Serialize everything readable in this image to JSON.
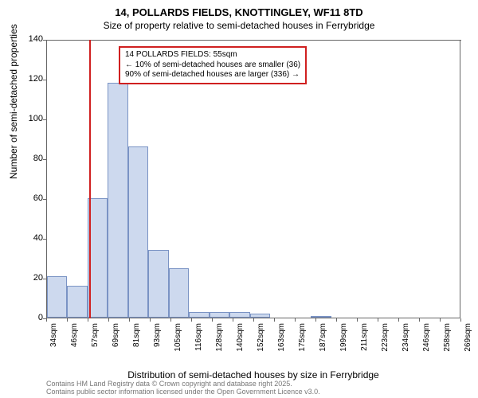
{
  "title": "14, POLLARDS FIELDS, KNOTTINGLEY, WF11 8TD",
  "subtitle": "Size of property relative to semi-detached houses in Ferrybridge",
  "ylabel": "Number of semi-detached properties",
  "xlabel": "Distribution of semi-detached houses by size in Ferrybridge",
  "chart": {
    "type": "histogram",
    "background_color": "#ffffff",
    "bar_fill": "#cdd9ee",
    "bar_border": "#7a93c4",
    "refline_color": "#d02020",
    "annot_border": "#d02020",
    "ylim": [
      0,
      140
    ],
    "yticks": [
      0,
      20,
      40,
      60,
      80,
      100,
      120,
      140
    ],
    "xticks": [
      "34sqm",
      "46sqm",
      "57sqm",
      "69sqm",
      "81sqm",
      "93sqm",
      "105sqm",
      "116sqm",
      "128sqm",
      "140sqm",
      "152sqm",
      "163sqm",
      "175sqm",
      "187sqm",
      "199sqm",
      "211sqm",
      "223sqm",
      "234sqm",
      "246sqm",
      "258sqm",
      "269sqm"
    ],
    "refline_x": 55,
    "x_min": 30,
    "x_max": 275,
    "bars": [
      {
        "x0": 30,
        "x1": 42,
        "y": 21
      },
      {
        "x0": 42,
        "x1": 54,
        "y": 16
      },
      {
        "x0": 54,
        "x1": 66,
        "y": 60
      },
      {
        "x0": 66,
        "x1": 78,
        "y": 118
      },
      {
        "x0": 78,
        "x1": 90,
        "y": 86
      },
      {
        "x0": 90,
        "x1": 102,
        "y": 34
      },
      {
        "x0": 102,
        "x1": 114,
        "y": 25
      },
      {
        "x0": 114,
        "x1": 126,
        "y": 3
      },
      {
        "x0": 126,
        "x1": 138,
        "y": 3
      },
      {
        "x0": 138,
        "x1": 150,
        "y": 3
      },
      {
        "x0": 150,
        "x1": 162,
        "y": 2
      },
      {
        "x0": 186,
        "x1": 198,
        "y": 1
      }
    ]
  },
  "annotation": {
    "line1": "14 POLLARDS FIELDS: 55sqm",
    "line2": "← 10% of semi-detached houses are smaller (36)",
    "line3": "90% of semi-detached houses are larger (336) →"
  },
  "footer": {
    "line1": "Contains HM Land Registry data © Crown copyright and database right 2025.",
    "line2": "Contains public sector information licensed under the Open Government Licence v3.0."
  }
}
